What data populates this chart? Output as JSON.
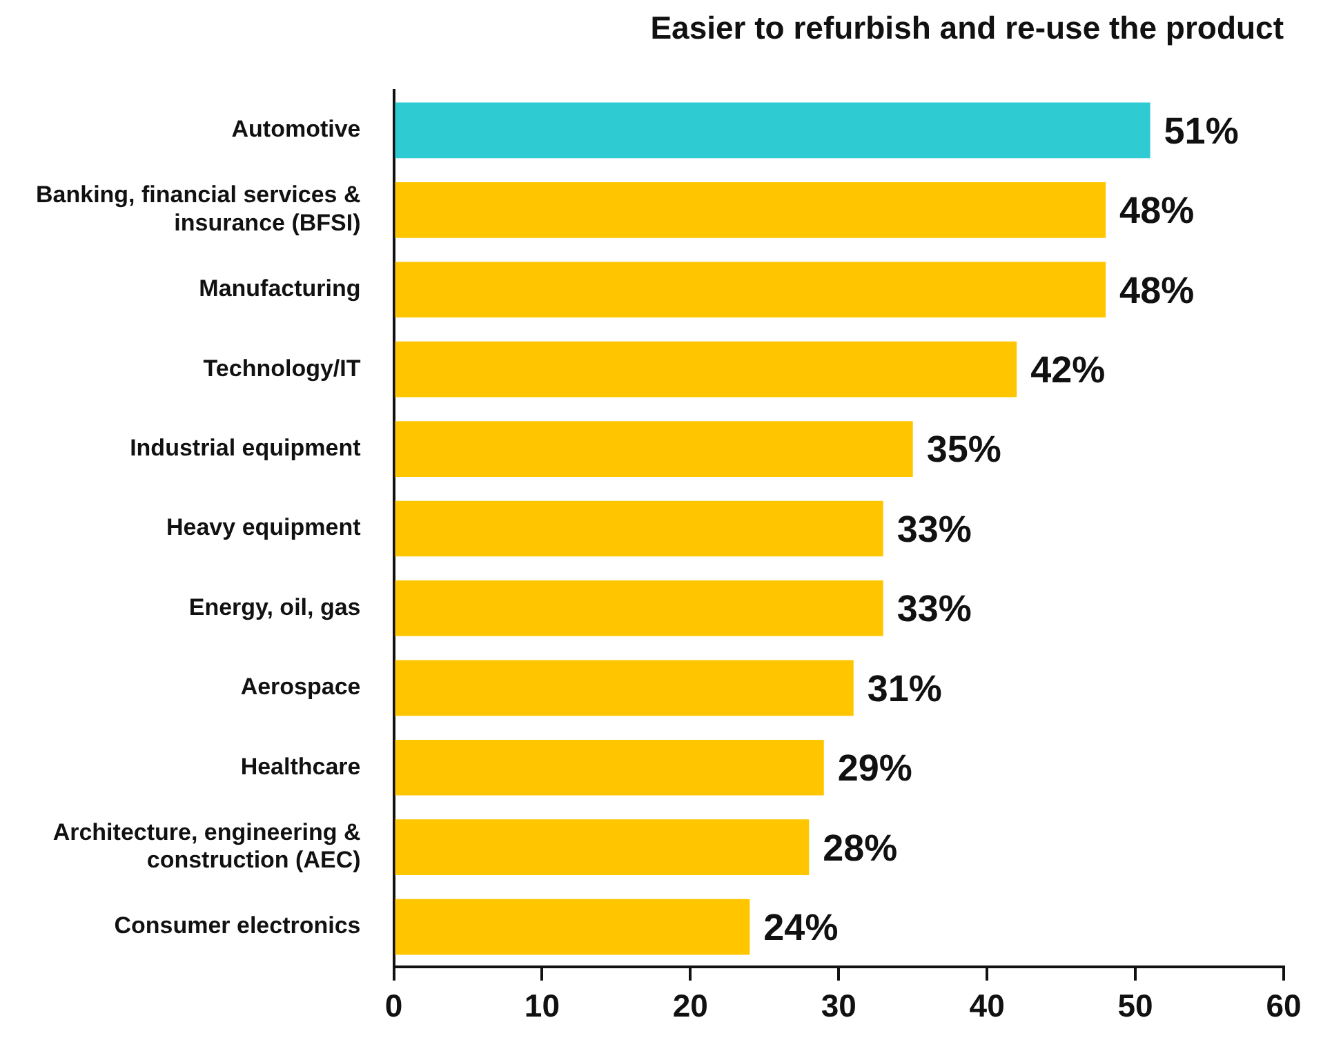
{
  "chart_data": {
    "type": "bar",
    "orientation": "horizontal",
    "title": "Easier to refurbish and re-use the product",
    "categories": [
      "Automotive",
      "Banking, financial services & insurance (BFSI)",
      "Manufacturing",
      "Technology/IT",
      "Industrial equipment",
      "Heavy equipment",
      "Energy, oil, gas",
      "Aerospace",
      "Healthcare",
      "Architecture, engineering & construction (AEC)",
      "Consumer electronics"
    ],
    "values": [
      51,
      48,
      48,
      42,
      35,
      33,
      33,
      31,
      29,
      28,
      24
    ],
    "colors": [
      "#2ecbd3",
      "#ffc600",
      "#ffc600",
      "#ffc600",
      "#ffc600",
      "#ffc600",
      "#ffc600",
      "#ffc600",
      "#ffc600",
      "#ffc600",
      "#ffc600"
    ],
    "value_labels": [
      "51%",
      "48%",
      "48%",
      "42%",
      "35%",
      "33%",
      "33%",
      "31%",
      "29%",
      "28%",
      "24%"
    ],
    "xlim": [
      0,
      60
    ],
    "xticks": [
      0,
      10,
      20,
      30,
      40,
      50,
      60
    ],
    "grid": false,
    "legend": false
  }
}
